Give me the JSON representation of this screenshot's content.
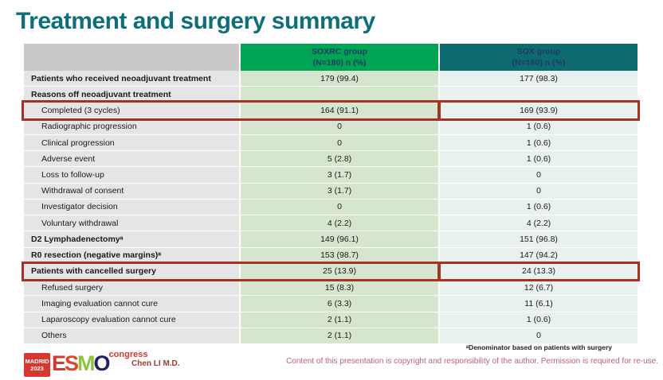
{
  "slide": {
    "title": "Treatment and surgery summary",
    "presenter": "Chen LI M.D.",
    "footnote": "ᵃDenominator based on patients with surgery",
    "copyright": "Content of this presentation is copyright and responsibility of the author. Permission is required for re-use.",
    "logo": {
      "city": "MADRID",
      "year": "2023",
      "congress": "congress",
      "letters": [
        {
          "ch": "E",
          "color": "#d6372e"
        },
        {
          "ch": "S",
          "color": "#e0452c"
        },
        {
          "ch": "M",
          "color": "#8cc43d"
        },
        {
          "ch": "O",
          "color": "#242160"
        }
      ]
    }
  },
  "table": {
    "header": {
      "soxrc_line1": "SOXRC group",
      "soxrc_line2": "(N=180)  n (%)",
      "sox_line1": "SOX group",
      "sox_line2": "(N=180)  n (%)"
    },
    "rows": [
      {
        "label": "Patients who received neoadjuvant treatment",
        "soxrc": "179 (99.4)",
        "sox": "177 (98.3)",
        "bold": true,
        "indent": false,
        "highlight": false
      },
      {
        "label": "Reasons off neoadjuvant treatment",
        "soxrc": "",
        "sox": "",
        "bold": true,
        "indent": false,
        "highlight": false
      },
      {
        "label": "Completed (3 cycles)",
        "soxrc": "164 (91.1)",
        "sox": "169 (93.9)",
        "bold": false,
        "indent": true,
        "highlight": true
      },
      {
        "label": "Radiographic progression",
        "soxrc": "0",
        "sox": "1 (0.6)",
        "bold": false,
        "indent": true,
        "highlight": false
      },
      {
        "label": "Clinical progression",
        "soxrc": "0",
        "sox": "1 (0.6)",
        "bold": false,
        "indent": true,
        "highlight": false
      },
      {
        "label": "Adverse event",
        "soxrc": "5 (2.8)",
        "sox": "1 (0.6)",
        "bold": false,
        "indent": true,
        "highlight": false
      },
      {
        "label": "Loss to follow-up",
        "soxrc": "3 (1.7)",
        "sox": "0",
        "bold": false,
        "indent": true,
        "highlight": false
      },
      {
        "label": "Withdrawal of consent",
        "soxrc": "3 (1.7)",
        "sox": "0",
        "bold": false,
        "indent": true,
        "highlight": false
      },
      {
        "label": "Investigator decision",
        "soxrc": "0",
        "sox": "1 (0.6)",
        "bold": false,
        "indent": true,
        "highlight": false
      },
      {
        "label": "Voluntary withdrawal",
        "soxrc": "4 (2.2)",
        "sox": "4 (2.2)",
        "bold": false,
        "indent": true,
        "highlight": false
      },
      {
        "label": "D2 Lymphadenectomyᵃ",
        "soxrc": "149 (96.1)",
        "sox": "151 (96.8)",
        "bold": true,
        "indent": false,
        "highlight": false
      },
      {
        "label": "R0 resection (negative margins)ᵃ",
        "soxrc": "153 (98.7)",
        "sox": "147 (94.2)",
        "bold": true,
        "indent": false,
        "highlight": false
      },
      {
        "label": "Patients with cancelled surgery",
        "soxrc": "25 (13.9)",
        "sox": "24 (13.3)",
        "bold": true,
        "indent": false,
        "highlight": true
      },
      {
        "label": "Refused surgery",
        "soxrc": "15 (8.3)",
        "sox": "12 (6.7)",
        "bold": false,
        "indent": true,
        "highlight": false
      },
      {
        "label": "Imaging evaluation cannot cure",
        "soxrc": "6 (3.3)",
        "sox": "11 (6.1)",
        "bold": false,
        "indent": true,
        "highlight": false
      },
      {
        "label": "Laparoscopy evaluation cannot cure",
        "soxrc": "2 (1.1)",
        "sox": "1 (0.6)",
        "bold": false,
        "indent": true,
        "highlight": false
      },
      {
        "label": "Others",
        "soxrc": "2 (1.1)",
        "sox": "0",
        "bold": false,
        "indent": true,
        "highlight": false
      }
    ]
  },
  "colors": {
    "title": "#0e6f7a",
    "header_green": "#00a553",
    "header_teal": "#0d6b70",
    "header_text": "#1e3a63",
    "label_header_bg": "#c9c9c9",
    "label_bg": "#e5e5e5",
    "soxrc_bg": "#d6e5cd",
    "sox_bg": "#e8f1ed",
    "highlight_red": "#a63125",
    "copyright_pink": "#bf5f7d",
    "credit_red": "#9e3a31",
    "logo_red": "#d6372e"
  }
}
